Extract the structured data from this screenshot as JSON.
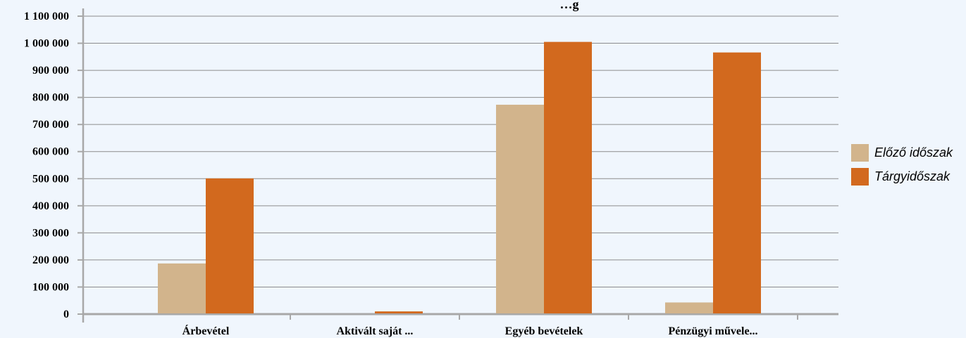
{
  "chart_data": {
    "type": "bar",
    "title": "…g",
    "categories": [
      "Árbevétel",
      "Aktivált saját ...",
      "Egyéb bevételek",
      "Pénzügyi művele..."
    ],
    "series": [
      {
        "name": "Előző időszak",
        "color": "#d2b48c",
        "values": [
          187000,
          0,
          773000,
          43000
        ]
      },
      {
        "name": "Tárgyidőszak",
        "color": "#d2691e",
        "values": [
          501000,
          10000,
          1005000,
          966000
        ]
      }
    ],
    "ylim": [
      0,
      1100000
    ],
    "yticks": [
      0,
      100000,
      200000,
      300000,
      400000,
      500000,
      600000,
      700000,
      800000,
      900000,
      1000000,
      1100000
    ],
    "ytick_labels": [
      "0",
      "100 000",
      "200 000",
      "300 000",
      "400 000",
      "500 000",
      "600 000",
      "700 000",
      "800 000",
      "900 000",
      "1 000 000",
      "1 100 000"
    ],
    "grid": true,
    "legend_position": "right"
  }
}
